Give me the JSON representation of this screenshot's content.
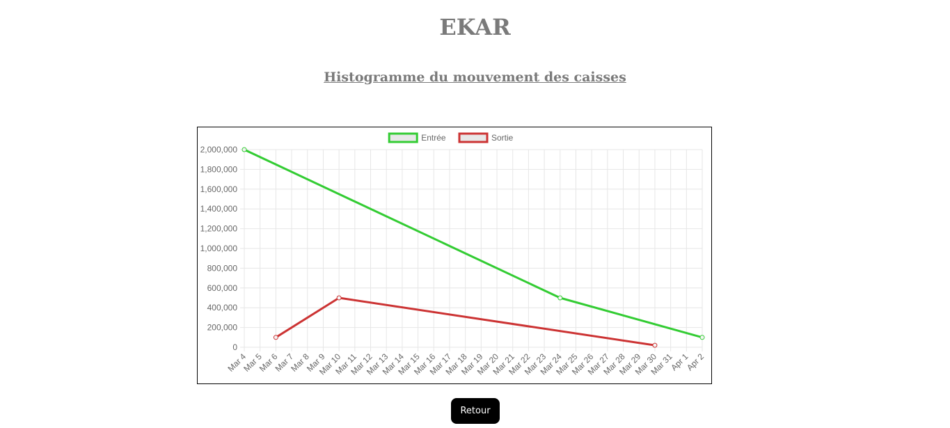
{
  "page": {
    "title": "EKAR",
    "subtitle": "Histogramme du mouvement des caisses",
    "back_button_label": "Retour"
  },
  "chart_data": {
    "type": "line",
    "title": "",
    "xlabel": "",
    "ylabel": "",
    "categories": [
      "Mar 4",
      "Mar 5",
      "Mar 6",
      "Mar 7",
      "Mar 8",
      "Mar 9",
      "Mar 10",
      "Mar 11",
      "Mar 12",
      "Mar 13",
      "Mar 14",
      "Mar 15",
      "Mar 16",
      "Mar 17",
      "Mar 18",
      "Mar 19",
      "Mar 20",
      "Mar 21",
      "Mar 22",
      "Mar 23",
      "Mar 24",
      "Mar 25",
      "Mar 26",
      "Mar 27",
      "Mar 28",
      "Mar 29",
      "Mar 30",
      "Mar 31",
      "Apr 1",
      "Apr 2"
    ],
    "ylim": [
      0,
      2000000
    ],
    "yticks": [
      0,
      200000,
      400000,
      600000,
      800000,
      1000000,
      1200000,
      1400000,
      1600000,
      1800000,
      2000000
    ],
    "ytick_labels": [
      "0",
      "200,000",
      "400,000",
      "600,000",
      "800,000",
      "1,000,000",
      "1,200,000",
      "1,400,000",
      "1,600,000",
      "1,800,000",
      "2,000,000"
    ],
    "grid": true,
    "legend_position": "top-center",
    "series": [
      {
        "name": "Entrée",
        "color": "#33cc33",
        "points": [
          {
            "x": "Mar 4",
            "y": 2000000
          },
          {
            "x": "Mar 24",
            "y": 500000
          },
          {
            "x": "Apr 2",
            "y": 100000
          }
        ]
      },
      {
        "name": "Sortie",
        "color": "#cc3333",
        "points": [
          {
            "x": "Mar 6",
            "y": 100000
          },
          {
            "x": "Mar 10",
            "y": 500000
          },
          {
            "x": "Mar 30",
            "y": 20000
          }
        ]
      }
    ]
  }
}
